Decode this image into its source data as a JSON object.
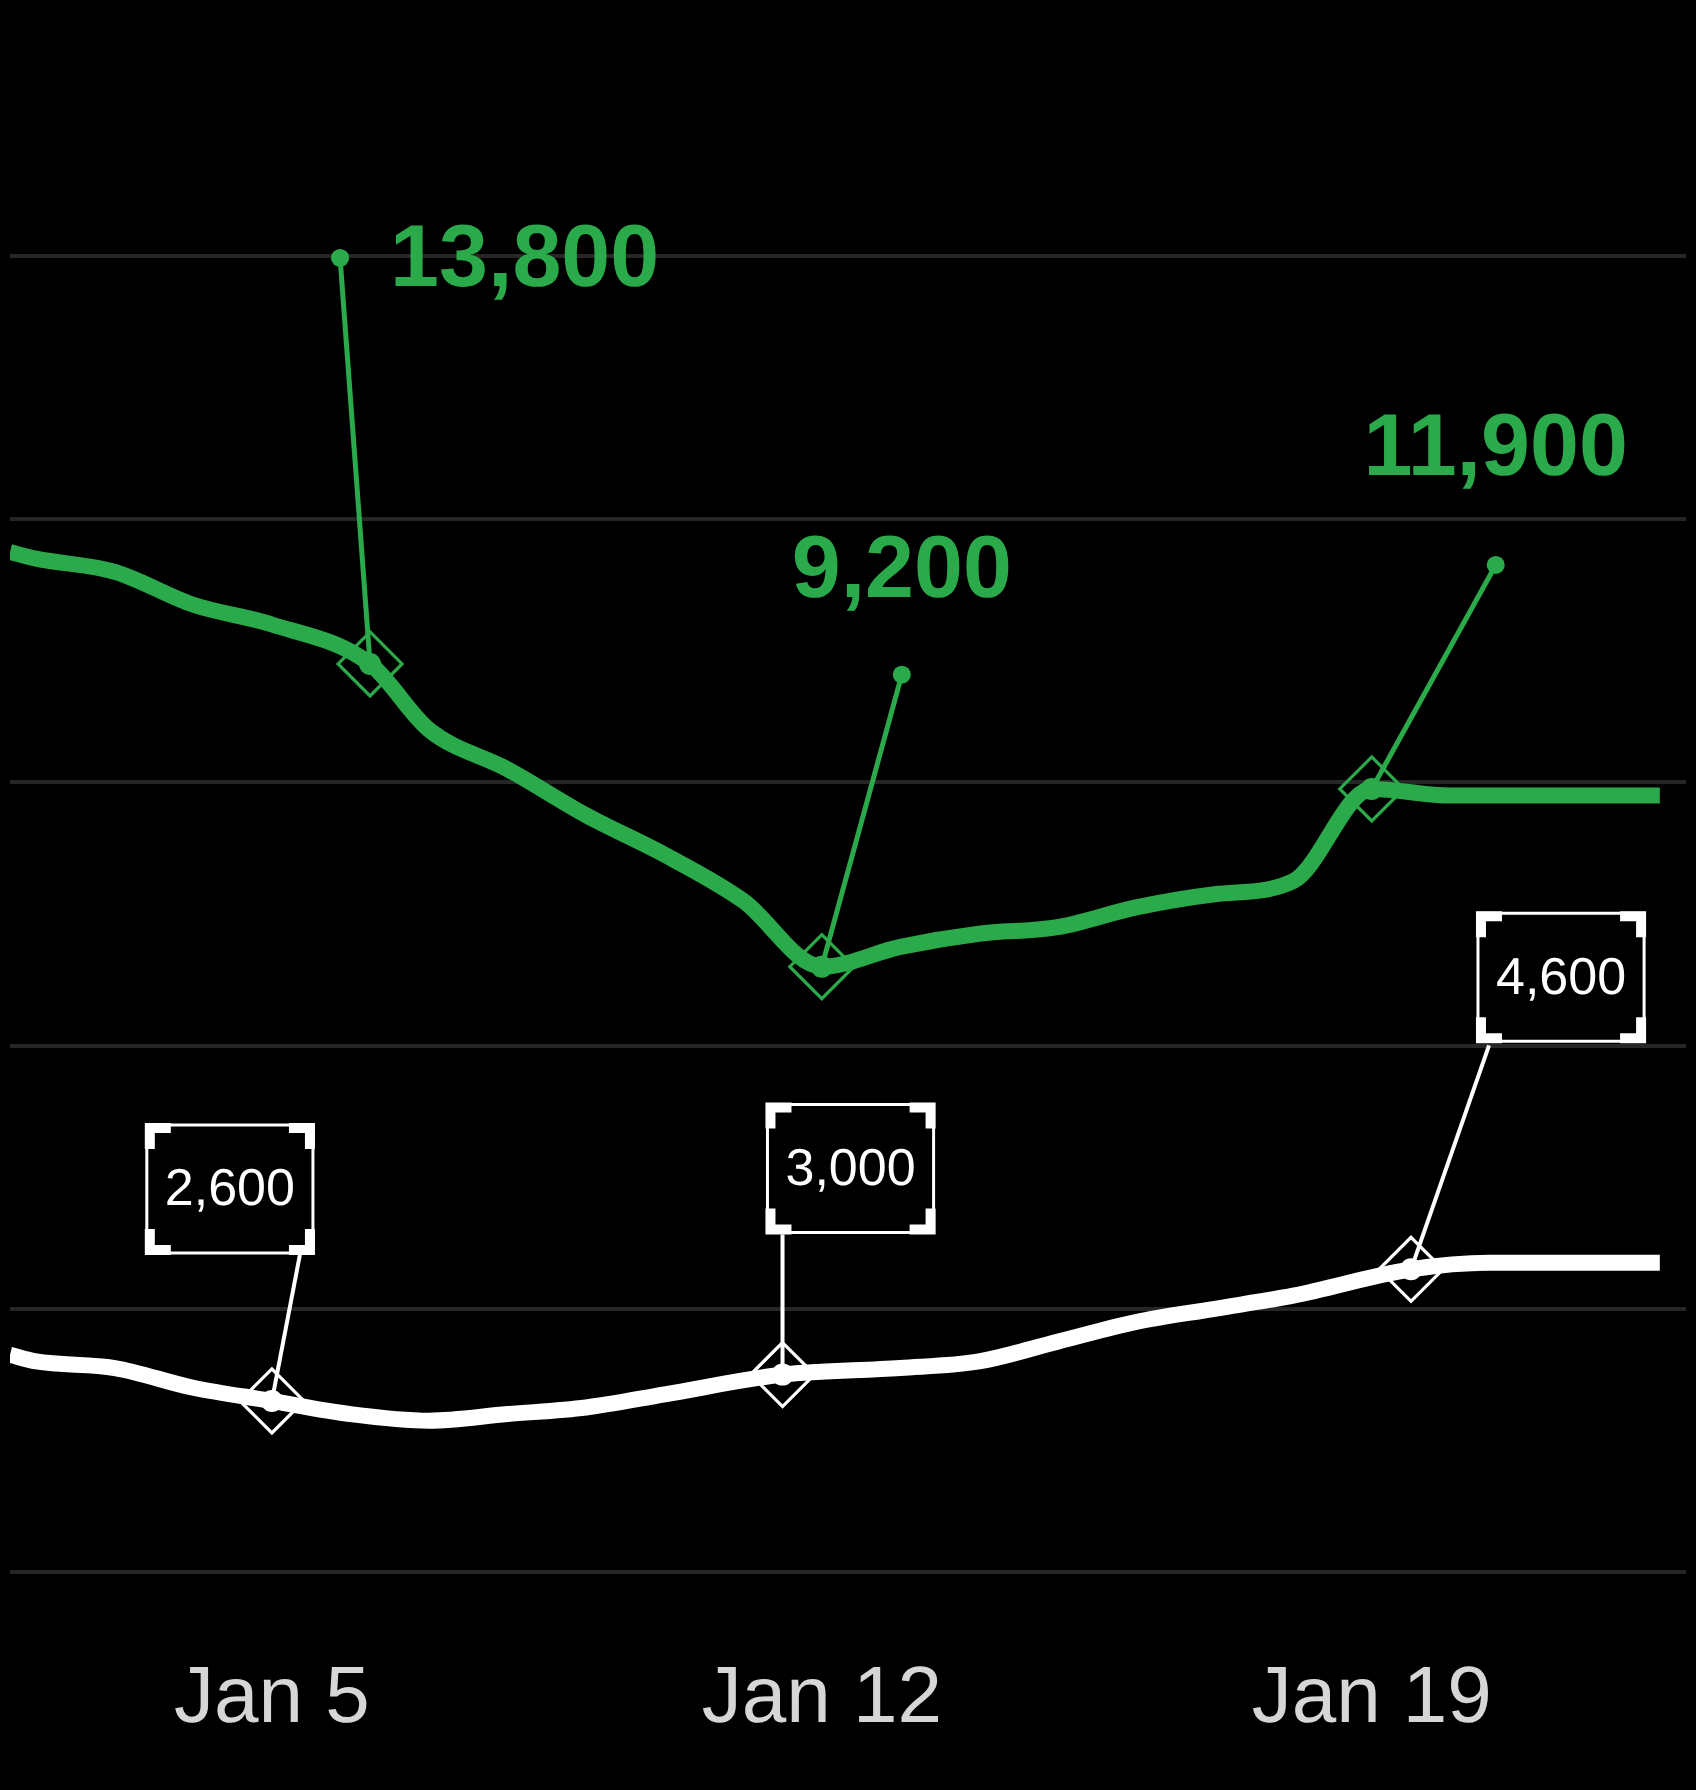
{
  "chart_data": {
    "type": "line",
    "xlim": [
      "--01-01T16:00",
      "--01-23"
    ],
    "xticks": [
      {
        "value": "--01-05",
        "label": "Jan 5"
      },
      {
        "value": "--01-12",
        "label": "Jan 12"
      },
      {
        "value": "--01-19",
        "label": "Jan 19"
      }
    ],
    "ylim": [
      0,
      20000
    ],
    "yticks": [
      {
        "value": 0,
        "label": null
      },
      {
        "value": 4000,
        "label": null
      },
      {
        "value": 8000,
        "label": null
      },
      {
        "value": 12000,
        "label": null
      },
      {
        "value": 16000,
        "label": null
      },
      {
        "value": 20000,
        "label": null
      }
    ],
    "grid": "y",
    "tick_labels": "x",
    "series": [
      {
        "color": "#2baa4b",
        "x": [
          "--01-01T16:00",
          "--01-02",
          "--01-03",
          "--01-04",
          "--01-05",
          "--01-06T06:00",
          "--01-07",
          "--01-08",
          "--01-09",
          "--01-10",
          "--01-11",
          "--01-12",
          "--01-13",
          "--01-14",
          "--01-15",
          "--01-16",
          "--01-17",
          "--01-18",
          "--01-19",
          "--01-20",
          "--01-21",
          "--01-22",
          "--01-22T16:00"
        ],
        "values": [
          15500,
          15400,
          15200,
          14700,
          14400,
          13800,
          12800,
          12200,
          11500,
          10900,
          10200,
          9200,
          9500,
          9700,
          9800,
          10100,
          10300,
          10500,
          11900,
          11800,
          11800,
          11800,
          11800
        ],
        "value_labels": [
          null,
          null,
          null,
          null,
          null,
          "13,800",
          null,
          null,
          null,
          null,
          null,
          "9,200",
          null,
          null,
          null,
          null,
          null,
          null,
          "11,900",
          null,
          null,
          null,
          null
        ]
      },
      {
        "color": "#ffffff",
        "x": [
          "--01-01T16:00",
          "--01-02",
          "--01-03",
          "--01-04",
          "--01-05",
          "--01-06",
          "--01-07",
          "--01-08",
          "--01-09",
          "--01-10",
          "--01-11T12:00",
          "--01-13",
          "--01-14",
          "--01-15",
          "--01-16",
          "--01-17",
          "--01-18",
          "--01-19T12:00",
          "--01-20T12:00",
          "--01-21T12:00",
          "--01-22T16:00"
        ],
        "values": [
          3300,
          3200,
          3100,
          2800,
          2600,
          2400,
          2300,
          2400,
          2500,
          2700,
          3000,
          3100,
          3200,
          3500,
          3800,
          4000,
          4200,
          4600,
          4700,
          4700,
          4700
        ],
        "value_labels": [
          null,
          null,
          null,
          null,
          "2,600",
          null,
          null,
          null,
          null,
          null,
          "3,000",
          null,
          null,
          null,
          null,
          null,
          null,
          "4,600",
          null,
          null,
          null
        ]
      }
    ]
  }
}
